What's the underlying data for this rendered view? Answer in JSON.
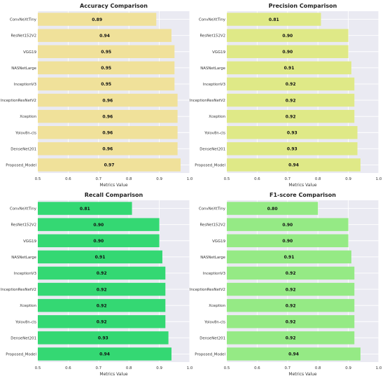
{
  "chart_data": [
    {
      "type": "bar",
      "orientation": "horizontal",
      "title": "Accuracy Comparison",
      "xlabel": "Metrics Value",
      "ylabel": "",
      "xlim": [
        0.5,
        1.0
      ],
      "xticks": [
        "0.5",
        "0.6",
        "0.7",
        "0.8",
        "0.9",
        "1.0"
      ],
      "grid": true,
      "color": "#f0e19a",
      "categories": [
        "ConvNeXtTiny",
        "ResNet152V2",
        "VGG19",
        "NASNetLarge",
        "InceptionV3",
        "InceptionResNetV2",
        "Xception",
        "Yolov8n-cls",
        "DenseNet201",
        "Proposed_Model"
      ],
      "values": [
        0.89,
        0.94,
        0.95,
        0.95,
        0.95,
        0.96,
        0.96,
        0.96,
        0.96,
        0.97
      ],
      "labels": [
        "0.89",
        "0.94",
        "0.95",
        "0.95",
        "0.95",
        "0.96",
        "0.96",
        "0.96",
        "0.96",
        "0.97"
      ]
    },
    {
      "type": "bar",
      "orientation": "horizontal",
      "title": "Precision Comparison",
      "xlabel": "Metrics Value",
      "ylabel": "",
      "xlim": [
        0.5,
        1.0
      ],
      "xticks": [
        "0.5",
        "0.6",
        "0.7",
        "0.8",
        "0.9",
        "1.0"
      ],
      "grid": true,
      "color": "#dfe987",
      "categories": [
        "ConvNeXtTiny",
        "ResNet152V2",
        "VGG19",
        "NASNetLarge",
        "InceptionV3",
        "InceptionResNetV2",
        "Xception",
        "Yolov8n-cls",
        "DenseNet201",
        "Proposed_Model"
      ],
      "values": [
        0.81,
        0.9,
        0.9,
        0.91,
        0.92,
        0.92,
        0.92,
        0.93,
        0.93,
        0.94
      ],
      "labels": [
        "0.81",
        "0.90",
        "0.90",
        "0.91",
        "0.92",
        "0.92",
        "0.92",
        "0.93",
        "0.93",
        "0.94"
      ]
    },
    {
      "type": "bar",
      "orientation": "horizontal",
      "title": "Recall Comparison",
      "xlabel": "Metrics Value",
      "ylabel": "",
      "xlim": [
        0.5,
        1.0
      ],
      "xticks": [
        "0.5",
        "0.6",
        "0.7",
        "0.8",
        "0.9",
        "1.0"
      ],
      "grid": true,
      "color": "#34d873",
      "categories": [
        "ConvNeXtTiny",
        "ResNet152V2",
        "VGG19",
        "NASNetLarge",
        "InceptionV3",
        "InceptionResNetV2",
        "Xception",
        "Yolov8n-cls",
        "DenseNet201",
        "Proposed_Model"
      ],
      "values": [
        0.81,
        0.9,
        0.9,
        0.91,
        0.92,
        0.92,
        0.92,
        0.92,
        0.93,
        0.94
      ],
      "labels": [
        "0.81",
        "0.90",
        "0.90",
        "0.91",
        "0.92",
        "0.92",
        "0.92",
        "0.92",
        "0.93",
        "0.94"
      ]
    },
    {
      "type": "bar",
      "orientation": "horizontal",
      "title": "F1-score Comparison",
      "xlabel": "Metrics Value",
      "ylabel": "",
      "xlim": [
        0.5,
        1.0
      ],
      "xticks": [
        "0.5",
        "0.6",
        "0.7",
        "0.8",
        "0.9",
        "1.0"
      ],
      "grid": true,
      "color": "#95ea85",
      "categories": [
        "ConvNeXtTiny",
        "ResNet152V2",
        "VGG19",
        "NASNetLarge",
        "InceptionV3",
        "InceptionResNetV2",
        "Xception",
        "Yolov8n-cls",
        "DenseNet201",
        "Proposed_Model"
      ],
      "values": [
        0.8,
        0.9,
        0.9,
        0.91,
        0.92,
        0.92,
        0.92,
        0.92,
        0.92,
        0.94
      ],
      "labels": [
        "0.80",
        "0.90",
        "0.90",
        "0.91",
        "0.92",
        "0.92",
        "0.92",
        "0.92",
        "0.92",
        "0.94"
      ]
    }
  ]
}
